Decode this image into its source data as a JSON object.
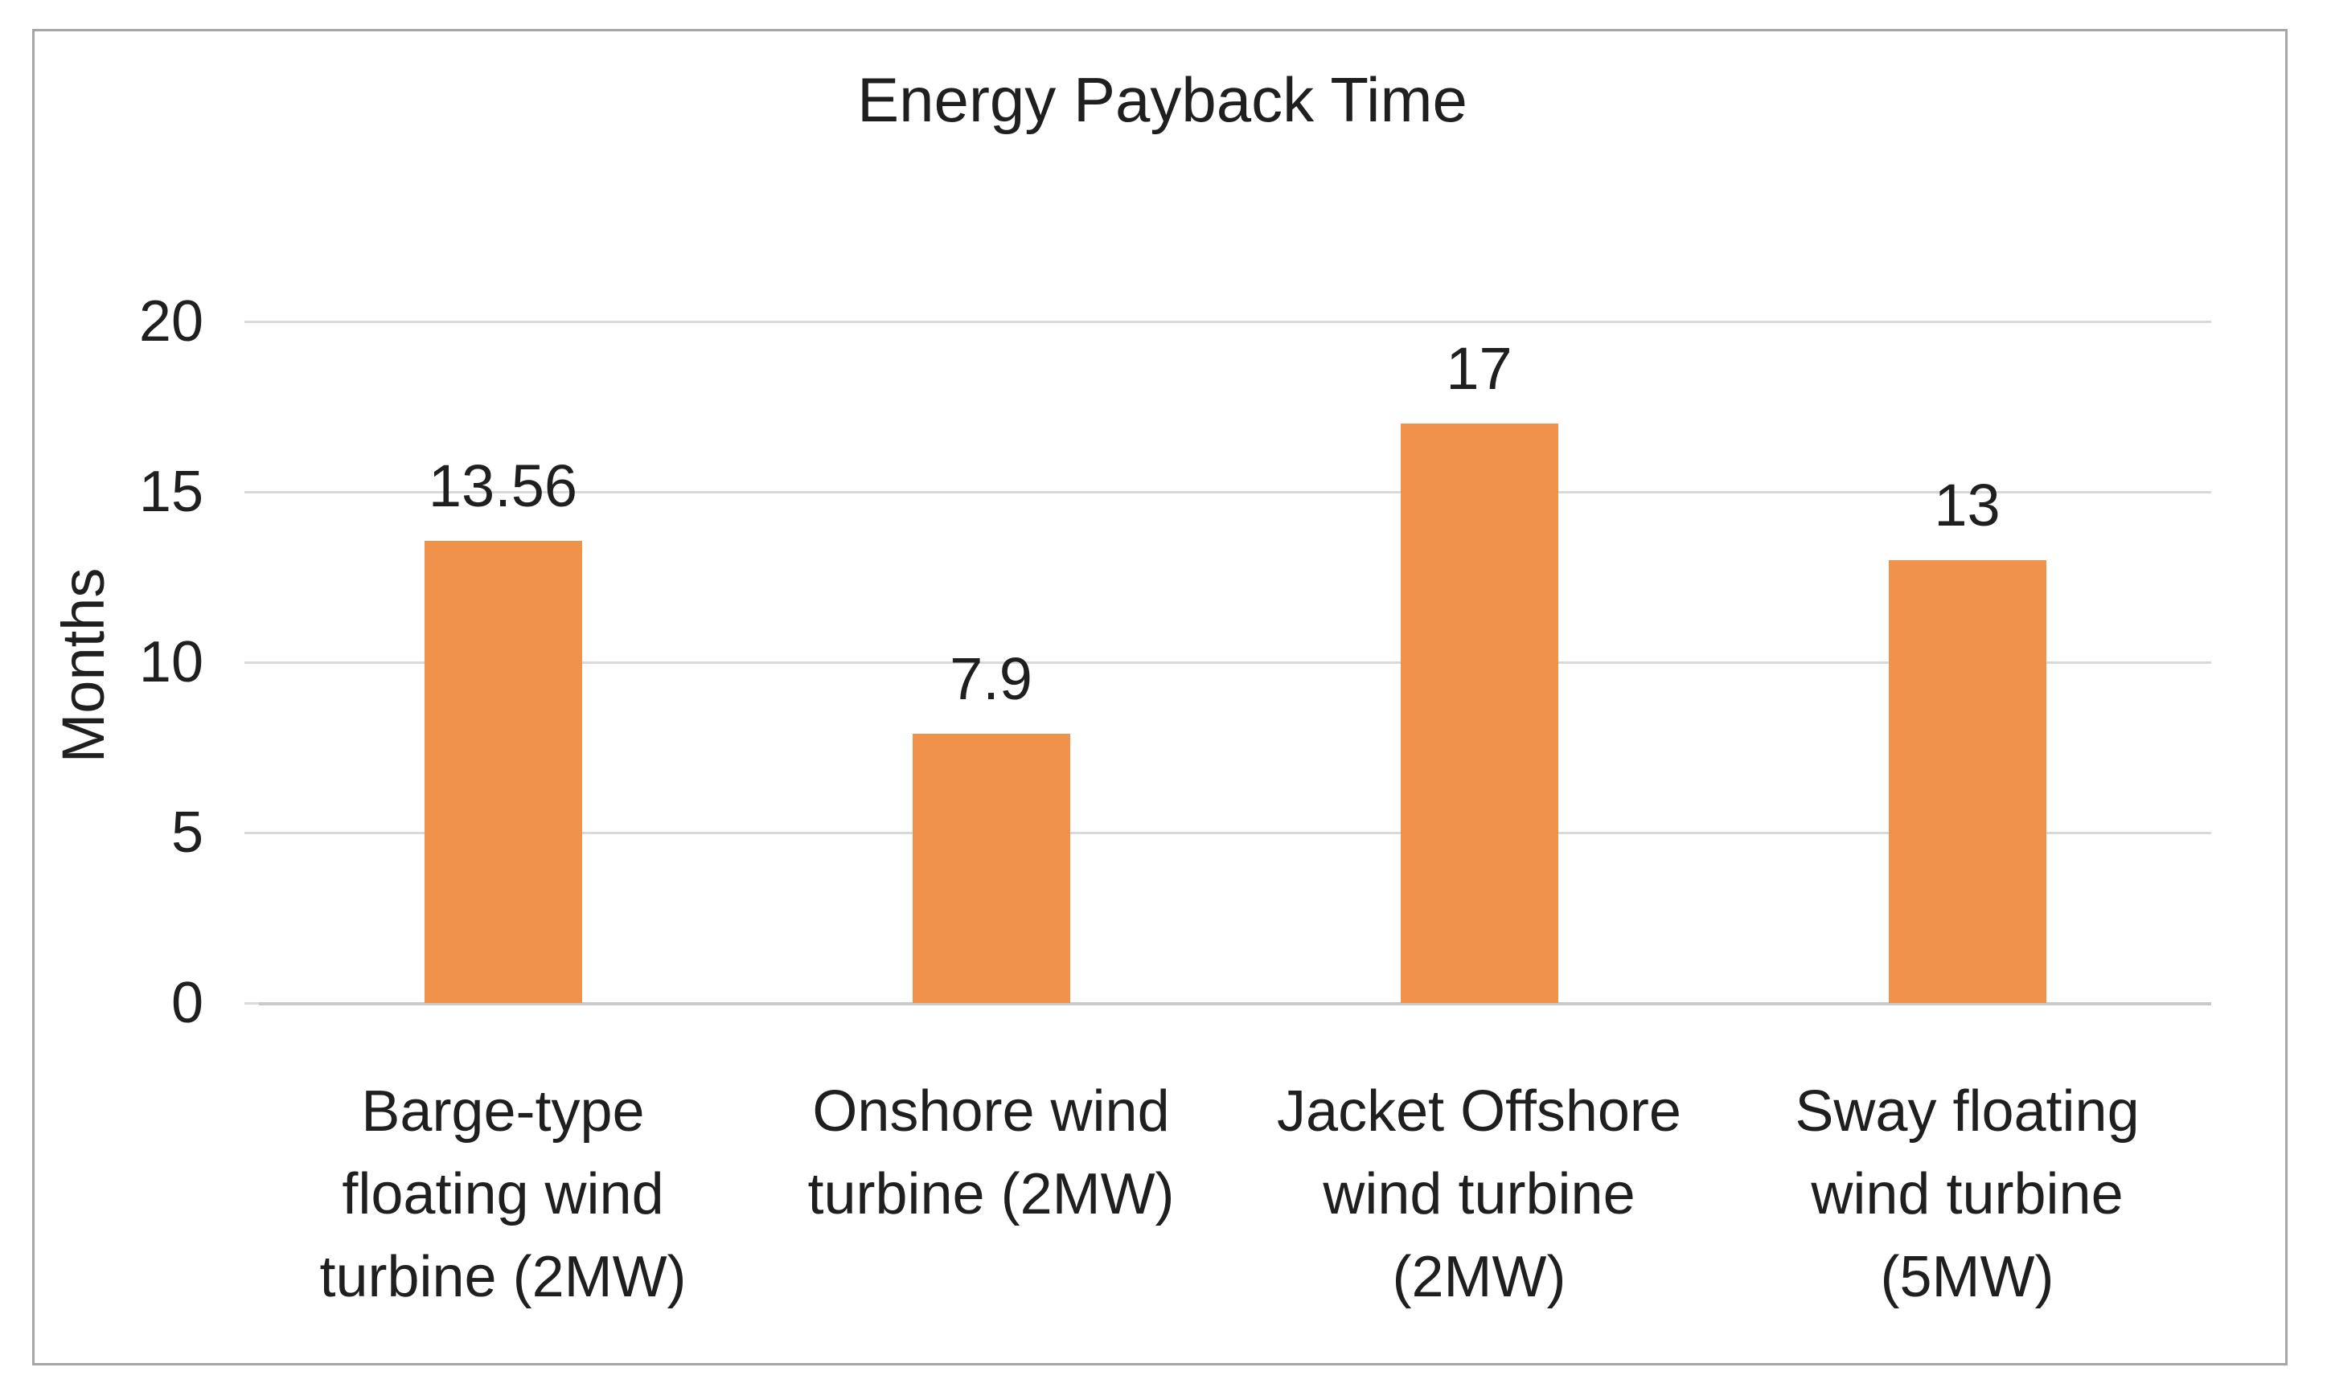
{
  "chart_data": {
    "type": "bar",
    "title": "Energy Payback Time",
    "ylabel": "Months",
    "xlabel": "",
    "categories": [
      "Barge-type\nfloating wind\nturbine (2MW)",
      "Onshore wind\nturbine (2MW)",
      "Jacket Offshore\nwind turbine\n(2MW)",
      "Sway floating\nwind turbine\n(5MW)"
    ],
    "values": [
      13.56,
      7.9,
      17,
      13
    ],
    "data_labels": [
      "13.56",
      "7.9",
      "17",
      "13"
    ],
    "yticks": [
      0,
      5,
      10,
      15,
      20
    ],
    "ytick_labels": [
      "0",
      "5",
      "10",
      "15",
      "20"
    ],
    "ylim": [
      0,
      20
    ],
    "grid": true,
    "legend_position": "none",
    "colors": {
      "bar_fill": "#f0924c",
      "gridline": "#d9d9d9",
      "axis_line": "#c9c9c9",
      "chart_border": "#a6a6a6",
      "text": "#1f1f1f",
      "background": "#ffffff"
    }
  }
}
